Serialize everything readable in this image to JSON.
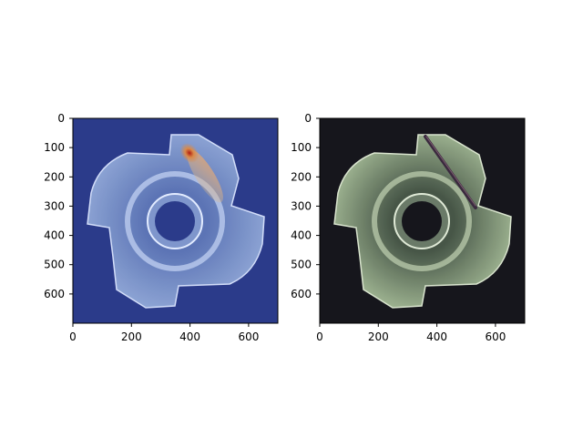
{
  "figure": {
    "panels": [
      {
        "name": "anomaly-heatmap-overlay",
        "xticks": [
          "0",
          "200",
          "400",
          "600"
        ],
        "yticks": [
          "0",
          "100",
          "200",
          "300",
          "400",
          "500",
          "600"
        ]
      },
      {
        "name": "original-image",
        "xticks": [
          "0",
          "200",
          "400",
          "600"
        ],
        "yticks": [
          "0",
          "100",
          "200",
          "300",
          "400",
          "500",
          "600"
        ]
      }
    ]
  },
  "colors": {
    "heatmap_background": "#2b3b8a",
    "photo_background": "#16161c",
    "hotspot": "#b01a10",
    "part_tint_left": "#9fb6e0",
    "part_tint_right": "#b9d1a8"
  },
  "icons": {
    "part": "threaded-flange-nut-icon",
    "defect": "scratch-defect-icon"
  }
}
